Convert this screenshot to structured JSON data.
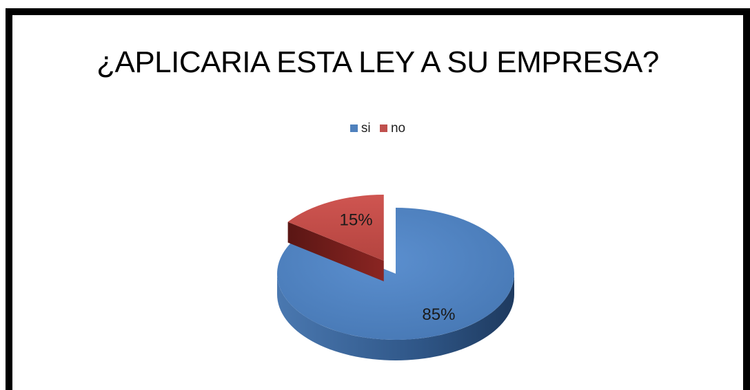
{
  "chart_data": {
    "type": "pie",
    "title": "¿APLICARIA ESTA LEY A SU EMPRESA?",
    "legend_position": "top",
    "slices": [
      {
        "name": "si",
        "value": 85,
        "label": "85%",
        "color": "#4f81bd"
      },
      {
        "name": "no",
        "value": 15,
        "label": "15%",
        "color": "#c0504d"
      }
    ],
    "style": "3d-exploded"
  }
}
